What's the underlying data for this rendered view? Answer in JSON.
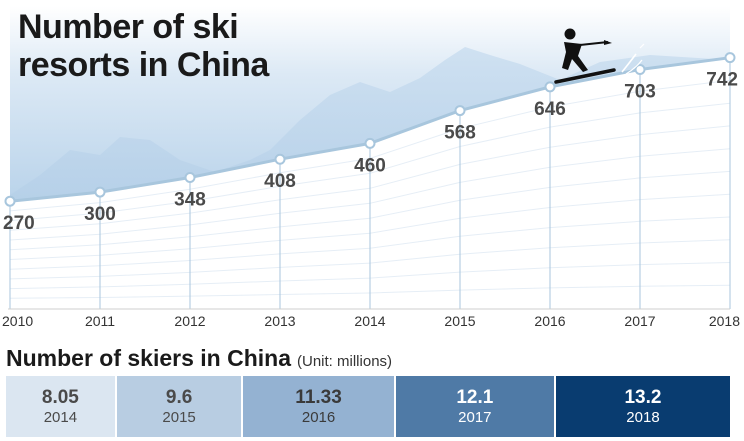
{
  "chart_data": [
    {
      "type": "line",
      "title": "Number of ski resorts in China",
      "title_lines": [
        "Number of ski",
        "resorts in China"
      ],
      "x": [
        "2010",
        "2011",
        "2012",
        "2013",
        "2014",
        "2015",
        "2016",
        "2017",
        "2018"
      ],
      "values": [
        270,
        300,
        348,
        408,
        460,
        568,
        646,
        703,
        742
      ],
      "value_labels": [
        "270",
        "300",
        "348",
        "408",
        "460",
        "568",
        "646",
        "703",
        "742"
      ],
      "ylim": [
        0,
        800
      ],
      "grid": false,
      "colors": {
        "line": "#a8c6dd",
        "sky": "#c9ddef",
        "mountain": "#b3cde6",
        "text": "#4a4a4a"
      }
    },
    {
      "type": "table",
      "title": "Number of skiers in China",
      "unit": "(Unit: millions)",
      "cells": [
        {
          "value": "8.05",
          "year": "2014",
          "bg": "#dbe6f1",
          "fg": "#4a4a4a"
        },
        {
          "value": "9.6",
          "year": "2015",
          "bg": "#b8cde2",
          "fg": "#4a4a4a"
        },
        {
          "value": "11.33",
          "year": "2016",
          "bg": "#94b2d2",
          "fg": "#3a3a3a"
        },
        {
          "value": "12.1",
          "year": "2017",
          "bg": "#4f7aa6",
          "fg": "#ffffff"
        },
        {
          "value": "13.2",
          "year": "2018",
          "bg": "#093c70",
          "fg": "#ffffff"
        }
      ]
    }
  ]
}
